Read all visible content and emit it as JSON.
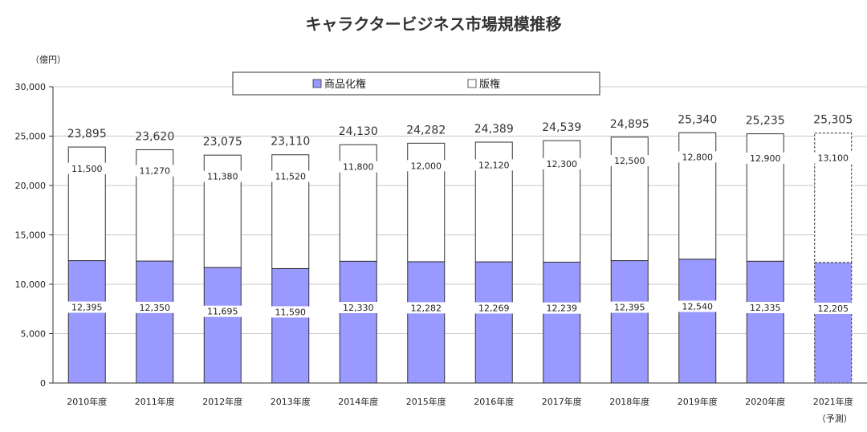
{
  "chart_data": {
    "type": "bar",
    "stacked": true,
    "title": "キャラクタービジネス市場規模推移",
    "ylabel": "（億円）",
    "ylim": [
      0,
      30000
    ],
    "yticks": [
      "0",
      "5,000",
      "10,000",
      "15,000",
      "20,000",
      "25,000",
      "30,000"
    ],
    "legend_position": "top",
    "grid": true,
    "categories": [
      "2010年度",
      "2011年度",
      "2012年度",
      "2013年度",
      "2014年度",
      "2015年度",
      "2016年度",
      "2017年度",
      "2018年度",
      "2019年度",
      "2020年度",
      "2021年度"
    ],
    "category_notes": [
      "",
      "",
      "",
      "",
      "",
      "",
      "",
      "",
      "",
      "",
      "",
      "（予測）"
    ],
    "series": [
      {
        "name": "商品化権",
        "color": "#9999ff",
        "values": [
          12395,
          12350,
          11695,
          11590,
          12330,
          12282,
          12269,
          12239,
          12395,
          12540,
          12335,
          12205
        ],
        "labels": [
          "12,395",
          "12,350",
          "11,695",
          "11,590",
          "12,330",
          "12,282",
          "12,269",
          "12,239",
          "12,395",
          "12,540",
          "12,335",
          "12,205"
        ]
      },
      {
        "name": "版権",
        "color": "#ffffff",
        "values": [
          11500,
          11270,
          11380,
          11520,
          11800,
          12000,
          12120,
          12300,
          12500,
          12800,
          12900,
          13100
        ],
        "labels": [
          "11,500",
          "11,270",
          "11,380",
          "11,520",
          "11,800",
          "12,000",
          "12,120",
          "12,300",
          "12,500",
          "12,800",
          "12,900",
          "13,100"
        ]
      }
    ],
    "totals": [
      23895,
      23620,
      23075,
      23110,
      24130,
      24282,
      24389,
      24539,
      24895,
      25340,
      25235,
      25305
    ],
    "total_labels": [
      "23,895",
      "23,620",
      "23,075",
      "23,110",
      "24,130",
      "24,282",
      "24,389",
      "24,539",
      "24,895",
      "25,340",
      "25,235",
      "25,305"
    ],
    "forecast_last": true
  }
}
